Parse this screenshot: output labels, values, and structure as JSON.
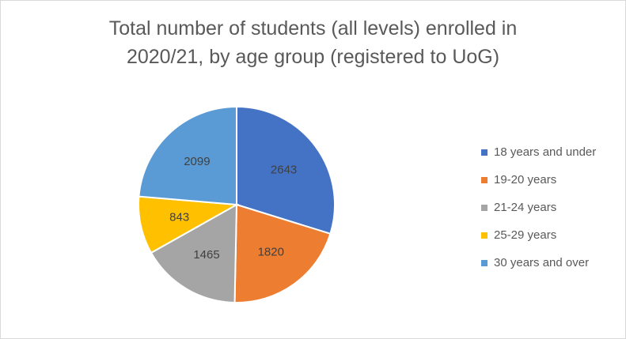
{
  "chart_data": {
    "type": "pie",
    "title_lines": [
      "Total number of students (all levels) enrolled in",
      "2020/21, by age group (registered to UoG)"
    ],
    "categories": [
      "18 years and under",
      "19-20 years",
      "21-24 years",
      "25-29 years",
      "30 years and over"
    ],
    "values": [
      2643,
      1820,
      1465,
      843,
      2099
    ],
    "data_labels": [
      "2643",
      "1820",
      "1465",
      "843",
      "2099"
    ],
    "colors": [
      "#4472c4",
      "#ed7d31",
      "#a5a5a5",
      "#ffc000",
      "#5b9bd5"
    ],
    "start_angle": "12 o'clock",
    "direction": "clockwise",
    "legend_position": "right"
  }
}
